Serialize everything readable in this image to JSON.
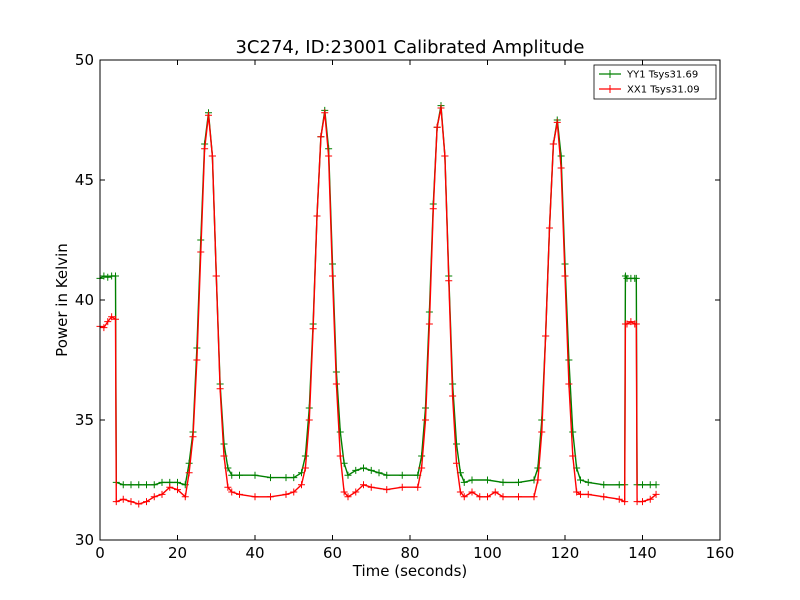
{
  "chart_data": {
    "type": "line",
    "title": "3C274, ID:23001 Calibrated Amplitude",
    "xlabel": "Time (seconds)",
    "ylabel": "Power in Kelvin",
    "xlim": [
      0,
      160
    ],
    "ylim": [
      30,
      50
    ],
    "xticks": [
      "0",
      "20",
      "40",
      "60",
      "80",
      "100",
      "120",
      "140",
      "160"
    ],
    "yticks": [
      "30",
      "35",
      "40",
      "45",
      "50"
    ],
    "grid": false,
    "legend_position": "top-right",
    "marker": "plus",
    "series": [
      {
        "name": "YY1 Tsys31.69",
        "color": "#008000",
        "points": [
          [
            0.0,
            40.9
          ],
          [
            1.0,
            41.0
          ],
          [
            2.0,
            40.95
          ],
          [
            3.0,
            41.0
          ],
          [
            4.0,
            41.0
          ],
          [
            4.2,
            32.4
          ],
          [
            6.0,
            32.3
          ],
          [
            8.0,
            32.3
          ],
          [
            10.0,
            32.3
          ],
          [
            12.0,
            32.3
          ],
          [
            14.0,
            32.3
          ],
          [
            16.0,
            32.4
          ],
          [
            18.0,
            32.4
          ],
          [
            20.0,
            32.4
          ],
          [
            22.0,
            32.3
          ],
          [
            23.0,
            33.2
          ],
          [
            24.0,
            34.5
          ],
          [
            25.0,
            38.0
          ],
          [
            26.0,
            42.5
          ],
          [
            27.0,
            46.5
          ],
          [
            28.0,
            47.8
          ],
          [
            29.0,
            46.0
          ],
          [
            30.0,
            41.0
          ],
          [
            31.0,
            36.5
          ],
          [
            32.0,
            34.0
          ],
          [
            33.0,
            33.0
          ],
          [
            34.0,
            32.7
          ],
          [
            36.0,
            32.7
          ],
          [
            40.0,
            32.7
          ],
          [
            44.0,
            32.6
          ],
          [
            48.0,
            32.6
          ],
          [
            50.0,
            32.6
          ],
          [
            52.0,
            32.8
          ],
          [
            53.0,
            33.5
          ],
          [
            54.0,
            35.5
          ],
          [
            55.0,
            39.0
          ],
          [
            56.0,
            43.5
          ],
          [
            57.0,
            46.8
          ],
          [
            58.0,
            47.9
          ],
          [
            59.0,
            46.3
          ],
          [
            60.0,
            41.5
          ],
          [
            61.0,
            37.0
          ],
          [
            62.0,
            34.5
          ],
          [
            63.0,
            33.2
          ],
          [
            64.0,
            32.7
          ],
          [
            66.0,
            32.9
          ],
          [
            68.0,
            33.0
          ],
          [
            70.0,
            32.9
          ],
          [
            72.0,
            32.8
          ],
          [
            74.0,
            32.7
          ],
          [
            78.0,
            32.7
          ],
          [
            82.0,
            32.7
          ],
          [
            83.0,
            33.5
          ],
          [
            84.0,
            35.5
          ],
          [
            85.0,
            39.5
          ],
          [
            86.0,
            44.0
          ],
          [
            87.0,
            47.2
          ],
          [
            88.0,
            48.1
          ],
          [
            89.0,
            46.0
          ],
          [
            90.0,
            41.0
          ],
          [
            91.0,
            36.5
          ],
          [
            92.0,
            34.0
          ],
          [
            93.0,
            32.8
          ],
          [
            94.0,
            32.4
          ],
          [
            96.0,
            32.5
          ],
          [
            100.0,
            32.5
          ],
          [
            104.0,
            32.4
          ],
          [
            108.0,
            32.4
          ],
          [
            112.0,
            32.5
          ],
          [
            113.0,
            33.0
          ],
          [
            114.0,
            35.0
          ],
          [
            115.0,
            38.5
          ],
          [
            116.0,
            43.0
          ],
          [
            117.0,
            46.5
          ],
          [
            118.0,
            47.5
          ],
          [
            119.0,
            46.0
          ],
          [
            120.0,
            41.5
          ],
          [
            121.0,
            37.5
          ],
          [
            122.0,
            34.5
          ],
          [
            123.0,
            33.0
          ],
          [
            124.0,
            32.5
          ],
          [
            126.0,
            32.4
          ],
          [
            130.0,
            32.3
          ],
          [
            134.0,
            32.3
          ],
          [
            135.4,
            32.3
          ],
          [
            135.6,
            41.0
          ],
          [
            136.0,
            40.9
          ],
          [
            137.0,
            40.9
          ],
          [
            138.0,
            40.9
          ],
          [
            138.4,
            40.9
          ],
          [
            138.6,
            32.3
          ],
          [
            140.0,
            32.3
          ],
          [
            142.0,
            32.3
          ],
          [
            143.5,
            32.3
          ]
        ]
      },
      {
        "name": "XX1 Tsys31.09",
        "color": "#ff0000",
        "points": [
          [
            0.0,
            38.9
          ],
          [
            1.0,
            38.85
          ],
          [
            2.0,
            39.1
          ],
          [
            3.0,
            39.3
          ],
          [
            4.0,
            39.2
          ],
          [
            4.2,
            31.6
          ],
          [
            6.0,
            31.7
          ],
          [
            8.0,
            31.6
          ],
          [
            10.0,
            31.5
          ],
          [
            12.0,
            31.6
          ],
          [
            14.0,
            31.8
          ],
          [
            16.0,
            31.9
          ],
          [
            18.0,
            32.2
          ],
          [
            20.0,
            32.1
          ],
          [
            22.0,
            31.8
          ],
          [
            23.0,
            32.8
          ],
          [
            24.0,
            34.3
          ],
          [
            25.0,
            37.5
          ],
          [
            26.0,
            42.0
          ],
          [
            27.0,
            46.3
          ],
          [
            28.0,
            47.7
          ],
          [
            29.0,
            46.0
          ],
          [
            30.0,
            41.0
          ],
          [
            31.0,
            36.3
          ],
          [
            32.0,
            33.5
          ],
          [
            33.0,
            32.2
          ],
          [
            34.0,
            32.0
          ],
          [
            36.0,
            31.9
          ],
          [
            40.0,
            31.8
          ],
          [
            44.0,
            31.8
          ],
          [
            48.0,
            31.9
          ],
          [
            50.0,
            32.0
          ],
          [
            52.0,
            32.3
          ],
          [
            53.0,
            33.0
          ],
          [
            54.0,
            35.0
          ],
          [
            55.0,
            38.8
          ],
          [
            56.0,
            43.5
          ],
          [
            57.0,
            46.8
          ],
          [
            58.0,
            47.8
          ],
          [
            59.0,
            46.0
          ],
          [
            60.0,
            41.0
          ],
          [
            61.0,
            36.5
          ],
          [
            62.0,
            33.5
          ],
          [
            63.0,
            32.0
          ],
          [
            64.0,
            31.8
          ],
          [
            66.0,
            32.0
          ],
          [
            68.0,
            32.3
          ],
          [
            70.0,
            32.2
          ],
          [
            74.0,
            32.1
          ],
          [
            78.0,
            32.2
          ],
          [
            82.0,
            32.2
          ],
          [
            83.0,
            33.0
          ],
          [
            84.0,
            35.0
          ],
          [
            85.0,
            39.0
          ],
          [
            86.0,
            43.8
          ],
          [
            87.0,
            47.2
          ],
          [
            88.0,
            48.0
          ],
          [
            89.0,
            46.0
          ],
          [
            90.0,
            40.8
          ],
          [
            91.0,
            36.0
          ],
          [
            92.0,
            33.2
          ],
          [
            93.0,
            32.0
          ],
          [
            94.0,
            31.8
          ],
          [
            96.0,
            32.0
          ],
          [
            98.0,
            31.8
          ],
          [
            100.0,
            31.8
          ],
          [
            102.0,
            32.0
          ],
          [
            104.0,
            31.8
          ],
          [
            108.0,
            31.8
          ],
          [
            112.0,
            31.8
          ],
          [
            113.0,
            32.5
          ],
          [
            114.0,
            34.5
          ],
          [
            115.0,
            38.5
          ],
          [
            116.0,
            43.0
          ],
          [
            117.0,
            46.5
          ],
          [
            118.0,
            47.4
          ],
          [
            119.0,
            45.5
          ],
          [
            120.0,
            41.0
          ],
          [
            121.0,
            36.5
          ],
          [
            122.0,
            33.5
          ],
          [
            123.0,
            32.0
          ],
          [
            124.0,
            31.9
          ],
          [
            126.0,
            31.9
          ],
          [
            130.0,
            31.8
          ],
          [
            134.0,
            31.7
          ],
          [
            135.4,
            31.6
          ],
          [
            135.6,
            39.0
          ],
          [
            136.0,
            39.0
          ],
          [
            137.0,
            39.1
          ],
          [
            138.0,
            39.0
          ],
          [
            138.4,
            39.0
          ],
          [
            138.6,
            31.6
          ],
          [
            140.0,
            31.6
          ],
          [
            142.0,
            31.7
          ],
          [
            143.5,
            31.9
          ]
        ]
      }
    ]
  }
}
